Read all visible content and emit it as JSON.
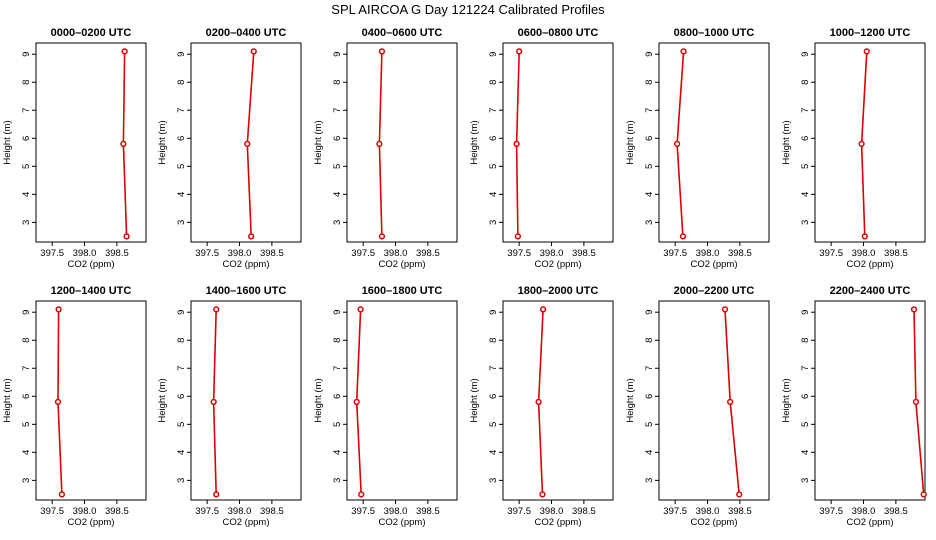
{
  "title": "SPL AIRCOA G  Day 121224  Calibrated Profiles",
  "colors": {
    "line": "#dd0000",
    "axis": "#000000"
  },
  "chart_data": [
    {
      "type": "line",
      "title": "0000–0200 UTC",
      "xlabel": "CO2 (ppm)",
      "ylabel": "Height (m)",
      "xlim": [
        397.25,
        398.95
      ],
      "ylim": [
        2.3,
        9.4
      ],
      "xticks": [
        397.5,
        398.0,
        398.5
      ],
      "yticks": [
        3,
        4,
        5,
        6,
        7,
        8,
        9
      ],
      "points": [
        {
          "x": 398.62,
          "y": 9.1
        },
        {
          "x": 398.6,
          "y": 5.8
        },
        {
          "x": 398.65,
          "y": 2.5
        }
      ]
    },
    {
      "type": "line",
      "title": "0200–0400 UTC",
      "xlabel": "CO2 (ppm)",
      "ylabel": "Height (m)",
      "xlim": [
        397.25,
        398.95
      ],
      "ylim": [
        2.3,
        9.4
      ],
      "xticks": [
        397.5,
        398.0,
        398.5
      ],
      "yticks": [
        3,
        4,
        5,
        6,
        7,
        8,
        9
      ],
      "points": [
        {
          "x": 398.22,
          "y": 9.1
        },
        {
          "x": 398.12,
          "y": 5.8
        },
        {
          "x": 398.18,
          "y": 2.5
        }
      ]
    },
    {
      "type": "line",
      "title": "0400–0600 UTC",
      "xlabel": "CO2 (ppm)",
      "ylabel": "Height (m)",
      "xlim": [
        397.25,
        398.95
      ],
      "ylim": [
        2.3,
        9.4
      ],
      "xticks": [
        397.5,
        398.0,
        398.5
      ],
      "yticks": [
        3,
        4,
        5,
        6,
        7,
        8,
        9
      ],
      "points": [
        {
          "x": 397.79,
          "y": 9.1
        },
        {
          "x": 397.75,
          "y": 5.8
        },
        {
          "x": 397.79,
          "y": 2.5
        }
      ]
    },
    {
      "type": "line",
      "title": "0600–0800 UTC",
      "xlabel": "CO2 (ppm)",
      "ylabel": "Height (m)",
      "xlim": [
        397.25,
        398.95
      ],
      "ylim": [
        2.3,
        9.4
      ],
      "xticks": [
        397.5,
        398.0,
        398.5
      ],
      "yticks": [
        3,
        4,
        5,
        6,
        7,
        8,
        9
      ],
      "points": [
        {
          "x": 397.5,
          "y": 9.1
        },
        {
          "x": 397.46,
          "y": 5.8
        },
        {
          "x": 397.48,
          "y": 2.5
        }
      ]
    },
    {
      "type": "line",
      "title": "0800–1000 UTC",
      "xlabel": "CO2 (ppm)",
      "ylabel": "Height (m)",
      "xlim": [
        397.25,
        398.95
      ],
      "ylim": [
        2.3,
        9.4
      ],
      "xticks": [
        397.5,
        398.0,
        398.5
      ],
      "yticks": [
        3,
        4,
        5,
        6,
        7,
        8,
        9
      ],
      "points": [
        {
          "x": 397.63,
          "y": 9.1
        },
        {
          "x": 397.53,
          "y": 5.8
        },
        {
          "x": 397.62,
          "y": 2.5
        }
      ]
    },
    {
      "type": "line",
      "title": "1000–1200 UTC",
      "xlabel": "CO2 (ppm)",
      "ylabel": "Height (m)",
      "xlim": [
        397.25,
        398.95
      ],
      "ylim": [
        2.3,
        9.4
      ],
      "xticks": [
        397.5,
        398.0,
        398.5
      ],
      "yticks": [
        3,
        4,
        5,
        6,
        7,
        8,
        9
      ],
      "points": [
        {
          "x": 398.05,
          "y": 9.1
        },
        {
          "x": 397.97,
          "y": 5.8
        },
        {
          "x": 398.02,
          "y": 2.5
        }
      ]
    },
    {
      "type": "line",
      "title": "1200–1400 UTC",
      "xlabel": "CO2 (ppm)",
      "ylabel": "Height (m)",
      "xlim": [
        397.25,
        398.95
      ],
      "ylim": [
        2.3,
        9.4
      ],
      "xticks": [
        397.5,
        398.0,
        398.5
      ],
      "yticks": [
        3,
        4,
        5,
        6,
        7,
        8,
        9
      ],
      "points": [
        {
          "x": 397.6,
          "y": 9.1
        },
        {
          "x": 397.59,
          "y": 5.8
        },
        {
          "x": 397.65,
          "y": 2.5
        }
      ]
    },
    {
      "type": "line",
      "title": "1400–1600 UTC",
      "xlabel": "CO2 (ppm)",
      "ylabel": "Height (m)",
      "xlim": [
        397.25,
        398.95
      ],
      "ylim": [
        2.3,
        9.4
      ],
      "xticks": [
        397.5,
        398.0,
        398.5
      ],
      "yticks": [
        3,
        4,
        5,
        6,
        7,
        8,
        9
      ],
      "points": [
        {
          "x": 397.64,
          "y": 9.1
        },
        {
          "x": 397.6,
          "y": 5.8
        },
        {
          "x": 397.64,
          "y": 2.5
        }
      ]
    },
    {
      "type": "line",
      "title": "1600–1800 UTC",
      "xlabel": "CO2 (ppm)",
      "ylabel": "Height (m)",
      "xlim": [
        397.25,
        398.95
      ],
      "ylim": [
        2.3,
        9.4
      ],
      "xticks": [
        397.5,
        398.0,
        398.5
      ],
      "yticks": [
        3,
        4,
        5,
        6,
        7,
        8,
        9
      ],
      "points": [
        {
          "x": 397.46,
          "y": 9.1
        },
        {
          "x": 397.4,
          "y": 5.8
        },
        {
          "x": 397.47,
          "y": 2.5
        }
      ]
    },
    {
      "type": "line",
      "title": "1800–2000 UTC",
      "xlabel": "CO2 (ppm)",
      "ylabel": "Height (m)",
      "xlim": [
        397.25,
        398.95
      ],
      "ylim": [
        2.3,
        9.4
      ],
      "xticks": [
        397.5,
        398.0,
        398.5
      ],
      "yticks": [
        3,
        4,
        5,
        6,
        7,
        8,
        9
      ],
      "points": [
        {
          "x": 397.87,
          "y": 9.1
        },
        {
          "x": 397.8,
          "y": 5.8
        },
        {
          "x": 397.86,
          "y": 2.5
        }
      ]
    },
    {
      "type": "line",
      "title": "2000–2200 UTC",
      "xlabel": "CO2 (ppm)",
      "ylabel": "Height (m)",
      "xlim": [
        397.25,
        398.95
      ],
      "ylim": [
        2.3,
        9.4
      ],
      "xticks": [
        397.5,
        398.0,
        398.5
      ],
      "yticks": [
        3,
        4,
        5,
        6,
        7,
        8,
        9
      ],
      "points": [
        {
          "x": 398.27,
          "y": 9.1
        },
        {
          "x": 398.35,
          "y": 5.8
        },
        {
          "x": 398.49,
          "y": 2.5
        }
      ]
    },
    {
      "type": "line",
      "title": "2200–2400 UTC",
      "xlabel": "CO2 (ppm)",
      "ylabel": "Height (m)",
      "xlim": [
        397.25,
        398.95
      ],
      "ylim": [
        2.3,
        9.4
      ],
      "xticks": [
        397.5,
        398.0,
        398.5
      ],
      "yticks": [
        3,
        4,
        5,
        6,
        7,
        8,
        9
      ],
      "points": [
        {
          "x": 398.78,
          "y": 9.1
        },
        {
          "x": 398.81,
          "y": 5.8
        },
        {
          "x": 398.93,
          "y": 2.5
        }
      ]
    }
  ]
}
